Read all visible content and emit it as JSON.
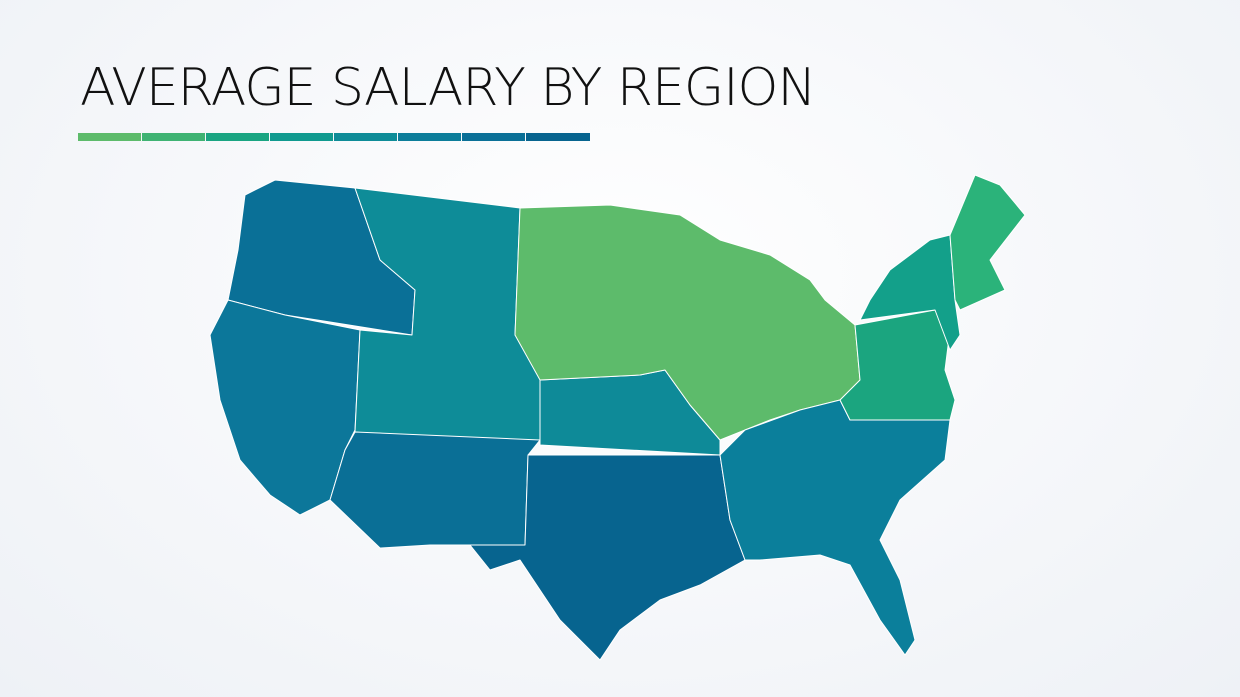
{
  "header": {
    "title": "AVERAGE SALARY BY REGION"
  }
}
